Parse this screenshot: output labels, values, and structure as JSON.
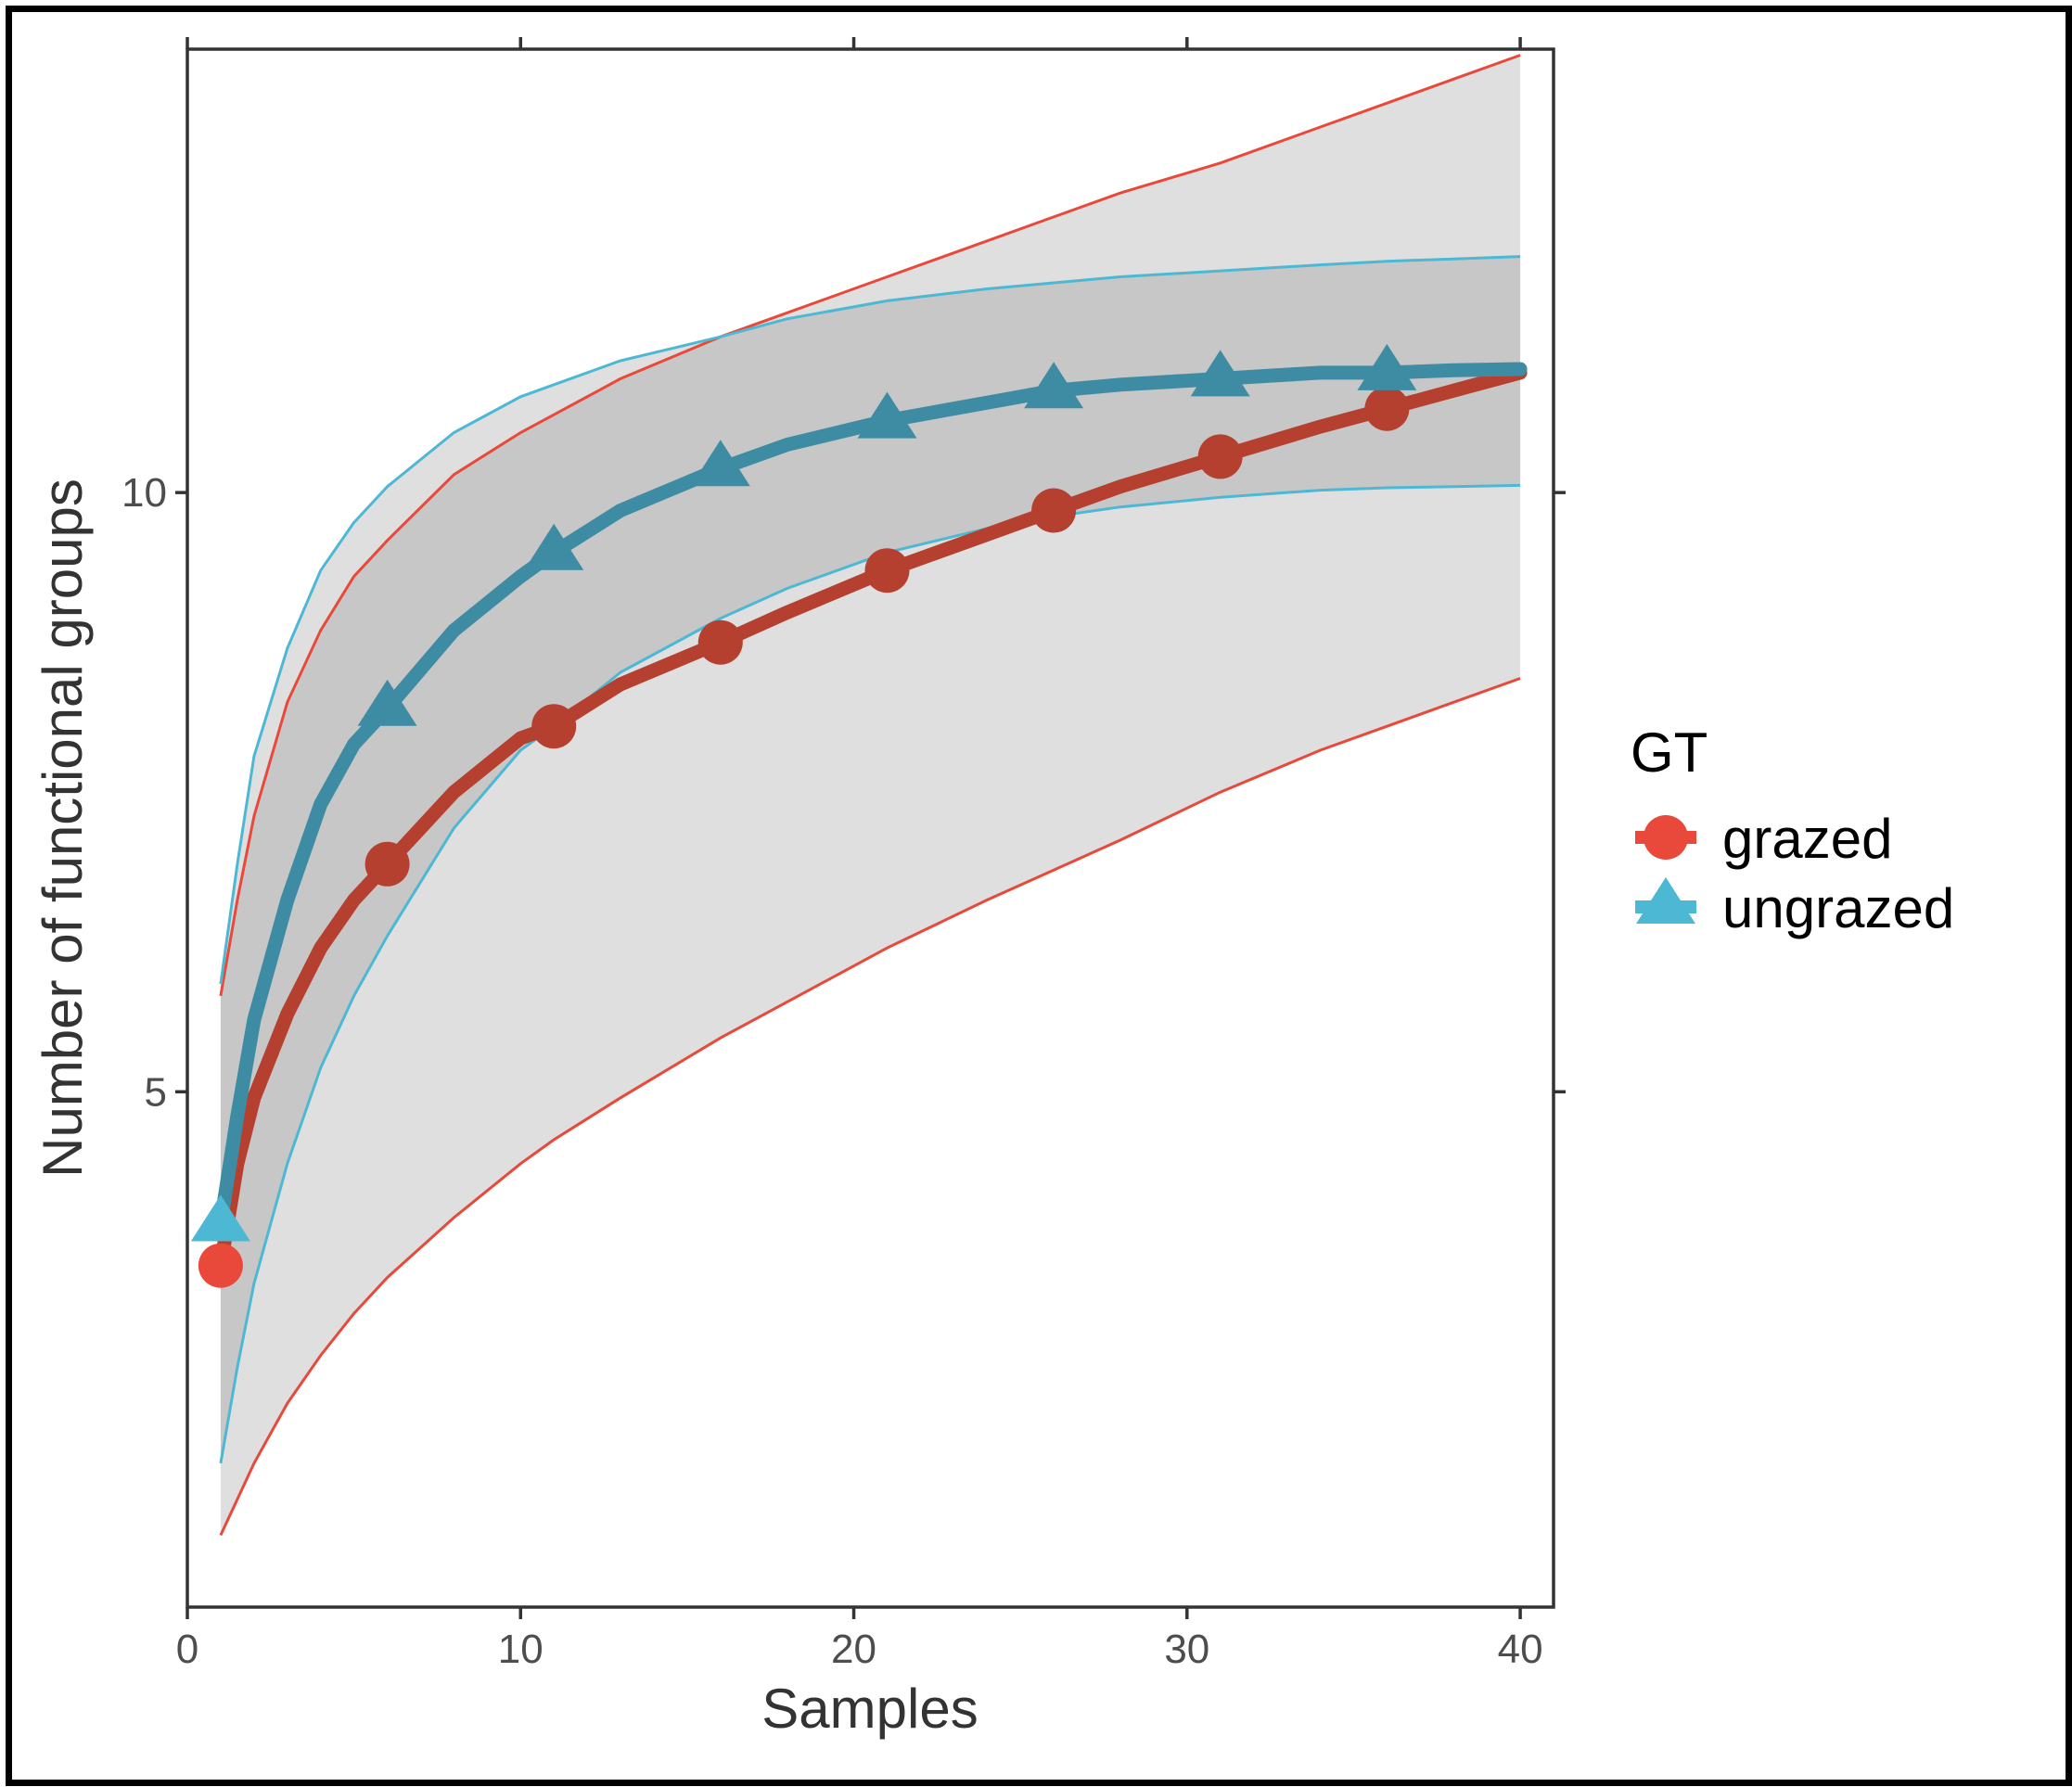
{
  "chart_data": {
    "type": "line",
    "title": "",
    "xlabel": "Samples",
    "ylabel": "Number of functional groups",
    "xlim": [
      0,
      41
    ],
    "ylim": [
      0.7,
      13.7
    ],
    "xticks": [
      0,
      10,
      20,
      30,
      40
    ],
    "yticks": [
      5,
      10
    ],
    "x_tick_labels": [
      "0",
      "10",
      "20",
      "30",
      "40"
    ],
    "y_tick_labels": [
      "5",
      "10"
    ],
    "legend": {
      "title": "GT",
      "position": "right",
      "entries": [
        {
          "label": "grazed",
          "color": "#e8493a",
          "marker": "circle"
        },
        {
          "label": "ungrazed",
          "color": "#4db8d4",
          "marker": "triangle"
        }
      ]
    },
    "band_fill_color": "#7f7f7f",
    "band_fill_opacity": 0.25,
    "series": [
      {
        "name": "grazed",
        "color": "#e8493a",
        "line_color": "#b5402f",
        "marker": "circle",
        "marker_x": [
          1,
          6,
          11,
          16,
          21,
          26,
          31,
          36
        ],
        "marker_y": [
          3.55,
          6.9,
          8.05,
          8.75,
          9.35,
          9.85,
          10.3,
          10.7
        ],
        "x": [
          1,
          1.5,
          2,
          3,
          4,
          5,
          6,
          8,
          10,
          11,
          13,
          16,
          18,
          21,
          24,
          26,
          28,
          31,
          34,
          36,
          38,
          40
        ],
        "y": [
          3.55,
          4.4,
          4.95,
          5.65,
          6.2,
          6.6,
          6.9,
          7.5,
          7.95,
          8.05,
          8.4,
          8.75,
          9.0,
          9.35,
          9.65,
          9.85,
          10.05,
          10.3,
          10.55,
          10.7,
          10.85,
          11.0
        ],
        "upper": [
          5.8,
          6.6,
          7.3,
          8.25,
          8.85,
          9.3,
          9.6,
          10.15,
          10.5,
          10.65,
          10.95,
          11.3,
          11.5,
          11.8,
          12.1,
          12.3,
          12.5,
          12.75,
          13.05,
          13.25,
          13.45,
          13.65
        ],
        "lower": [
          1.3,
          1.6,
          1.9,
          2.4,
          2.8,
          3.15,
          3.45,
          3.95,
          4.4,
          4.6,
          4.95,
          5.45,
          5.75,
          6.2,
          6.6,
          6.85,
          7.1,
          7.5,
          7.85,
          8.05,
          8.25,
          8.45
        ]
      },
      {
        "name": "ungrazed",
        "color": "#4db8d4",
        "line_color": "#3e8ca3",
        "marker": "triangle",
        "marker_x": [
          1,
          6,
          11,
          16,
          21,
          26,
          31,
          36
        ],
        "marker_y": [
          3.9,
          8.2,
          9.5,
          10.2,
          10.6,
          10.85,
          10.95,
          11.0
        ],
        "x": [
          1,
          1.5,
          2,
          3,
          4,
          5,
          6,
          8,
          10,
          11,
          13,
          16,
          18,
          21,
          24,
          26,
          28,
          31,
          34,
          36,
          38,
          40
        ],
        "y": [
          3.9,
          4.8,
          5.6,
          6.6,
          7.4,
          7.9,
          8.2,
          8.85,
          9.3,
          9.5,
          9.85,
          10.2,
          10.4,
          10.6,
          10.75,
          10.85,
          10.9,
          10.95,
          11.0,
          11.0,
          11.02,
          11.03
        ],
        "upper": [
          5.9,
          6.9,
          7.8,
          8.7,
          9.35,
          9.75,
          10.05,
          10.5,
          10.8,
          10.9,
          11.1,
          11.3,
          11.45,
          11.6,
          11.7,
          11.75,
          11.8,
          11.85,
          11.9,
          11.93,
          11.95,
          11.97
        ],
        "lower": [
          1.9,
          2.7,
          3.4,
          4.4,
          5.2,
          5.8,
          6.3,
          7.2,
          7.85,
          8.05,
          8.5,
          8.95,
          9.2,
          9.5,
          9.7,
          9.8,
          9.88,
          9.96,
          10.02,
          10.04,
          10.05,
          10.06
        ]
      }
    ]
  }
}
